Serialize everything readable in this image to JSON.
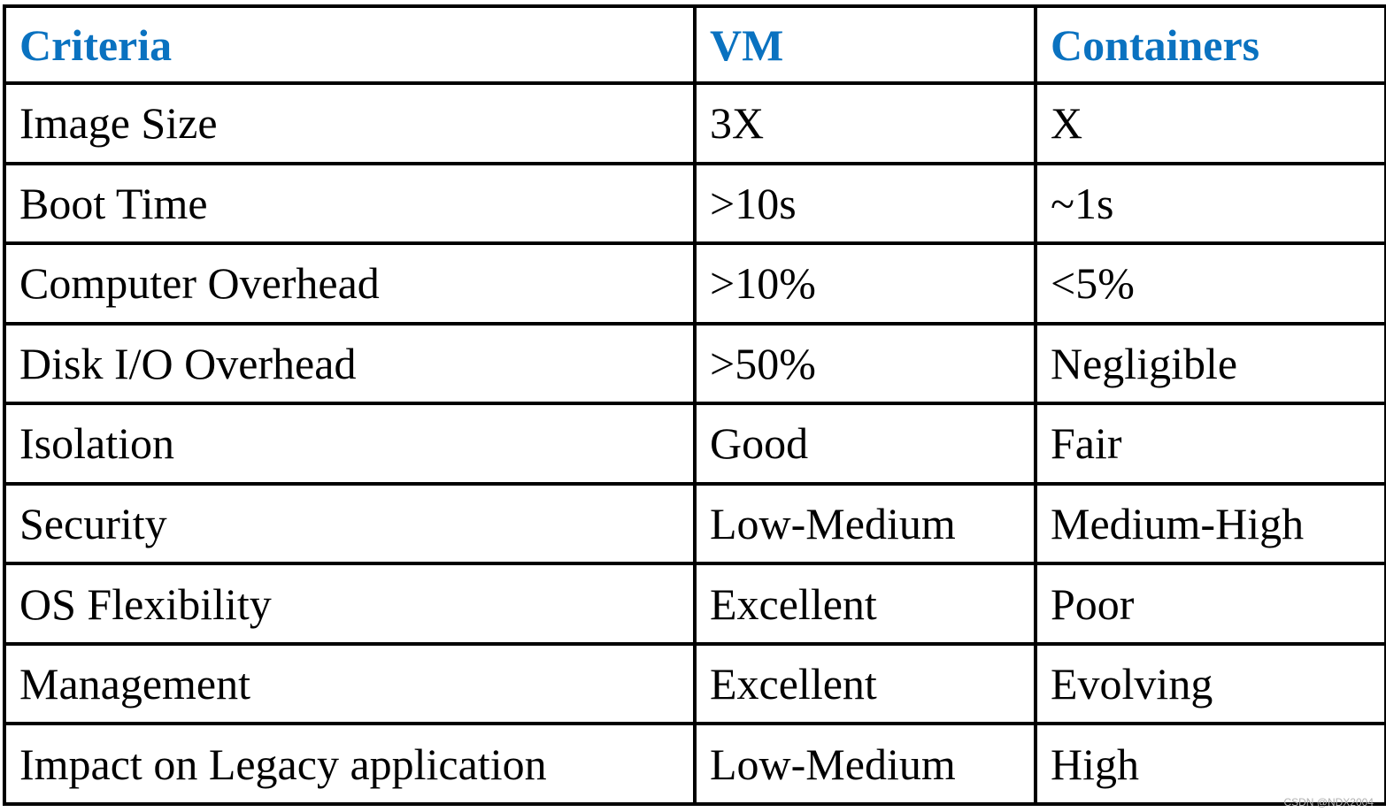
{
  "table": {
    "header": [
      "Criteria",
      "VM",
      "Containers"
    ],
    "rows": [
      [
        "Image Size",
        "3X",
        "X"
      ],
      [
        "Boot Time",
        ">10s",
        "~1s"
      ],
      [
        "Computer Overhead",
        ">10%",
        "<5%"
      ],
      [
        "Disk I/O Overhead",
        ">50%",
        "Negligible"
      ],
      [
        "Isolation",
        "Good",
        "Fair"
      ],
      [
        "Security",
        "Low-Medium",
        "Medium-High"
      ],
      [
        "OS Flexibility",
        "Excellent",
        "Poor"
      ],
      [
        "Management",
        "Excellent",
        "Evolving"
      ],
      [
        "Impact on Legacy application",
        "Low-Medium",
        "High"
      ]
    ]
  },
  "watermark": "CSDN @NDX2004"
}
